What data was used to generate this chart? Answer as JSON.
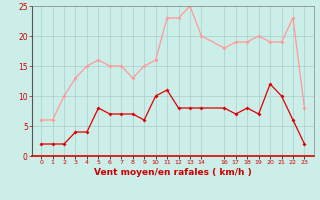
{
  "hours": [
    0,
    1,
    2,
    3,
    4,
    5,
    6,
    7,
    8,
    9,
    10,
    11,
    12,
    13,
    14,
    16,
    17,
    18,
    19,
    20,
    21,
    22,
    23
  ],
  "wind_avg": [
    2,
    2,
    2,
    4,
    4,
    8,
    7,
    7,
    7,
    6,
    10,
    11,
    8,
    8,
    8,
    8,
    7,
    8,
    7,
    12,
    10,
    6,
    2
  ],
  "wind_gust": [
    6,
    6,
    10,
    13,
    15,
    16,
    15,
    15,
    13,
    15,
    16,
    23,
    23,
    25,
    20,
    18,
    19,
    19,
    20,
    19,
    19,
    23,
    8
  ],
  "avg_color": "#dd0000",
  "gust_color": "#ff9999",
  "bg_color": "#cceee8",
  "grid_color": "#aacccc",
  "xlabel": "Vent moyen/en rafales ( km/h )",
  "ylim": [
    0,
    25
  ],
  "yticks": [
    0,
    5,
    10,
    15,
    20,
    25
  ],
  "tick_color": "#cc0000",
  "xlabel_color": "#cc0000",
  "marker": "D",
  "markersize": 2.0,
  "linewidth": 0.9,
  "axis_linewidth": 0.5
}
